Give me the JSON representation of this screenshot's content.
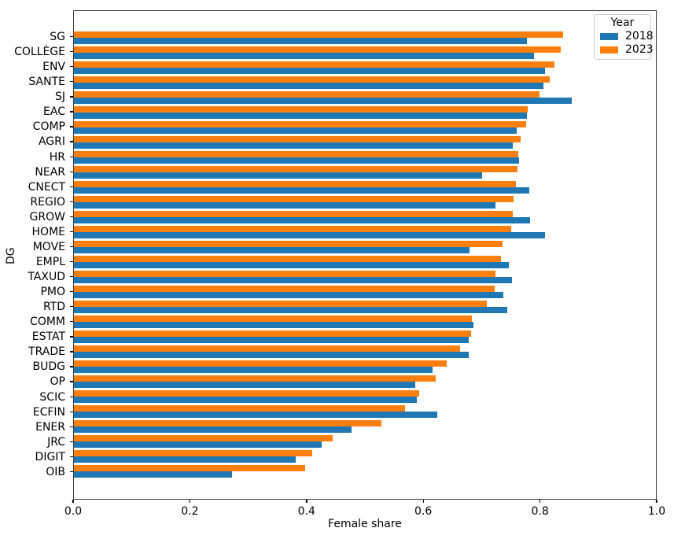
{
  "chart_data": {
    "type": "bar",
    "orientation": "horizontal",
    "title": "",
    "xlabel": "Female share",
    "ylabel": "DG",
    "xlim": [
      0.0,
      1.0
    ],
    "grid": false,
    "legend": {
      "title": "Year",
      "position": "upper right"
    },
    "x_ticks": [
      {
        "value": 0.0,
        "label": "0.0"
      },
      {
        "value": 0.2,
        "label": "0.2"
      },
      {
        "value": 0.4,
        "label": "0.4"
      },
      {
        "value": 0.6,
        "label": "0.6"
      },
      {
        "value": 0.8,
        "label": "0.8"
      },
      {
        "value": 1.0,
        "label": "1.0"
      }
    ],
    "categories": [
      "SG",
      "COLLÈGE",
      "ENV",
      "SANTE",
      "SJ",
      "EAC",
      "COMP",
      "AGRI",
      "HR",
      "NEAR",
      "CNECT",
      "REGIO",
      "GROW",
      "HOME",
      "MOVE",
      "EMPL",
      "TAXUD",
      "PMO",
      "RTD",
      "COMM",
      "ESTAT",
      "TRADE",
      "BUDG",
      "OP",
      "SCIC",
      "ECFIN",
      "ENER",
      "JRC",
      "DIGIT",
      "OIB"
    ],
    "series": [
      {
        "name": "2018",
        "color": "#1f77b4",
        "values": [
          0.778,
          0.791,
          0.81,
          0.807,
          0.856,
          0.778,
          0.761,
          0.754,
          0.765,
          0.702,
          0.783,
          0.724,
          0.784,
          0.81,
          0.68,
          0.747,
          0.753,
          0.738,
          0.744,
          0.686,
          0.678,
          0.678,
          0.616,
          0.586,
          0.589,
          0.624,
          0.477,
          0.425,
          0.381,
          0.272
        ]
      },
      {
        "name": "2023",
        "color": "#ff7f0e",
        "values": [
          0.841,
          0.837,
          0.825,
          0.818,
          0.8,
          0.78,
          0.777,
          0.768,
          0.763,
          0.762,
          0.76,
          0.755,
          0.754,
          0.752,
          0.736,
          0.734,
          0.724,
          0.723,
          0.709,
          0.684,
          0.683,
          0.663,
          0.64,
          0.621,
          0.593,
          0.569,
          0.528,
          0.445,
          0.409,
          0.397
        ]
      }
    ],
    "group_order_top_to_bottom": [
      "2023",
      "2018"
    ]
  }
}
